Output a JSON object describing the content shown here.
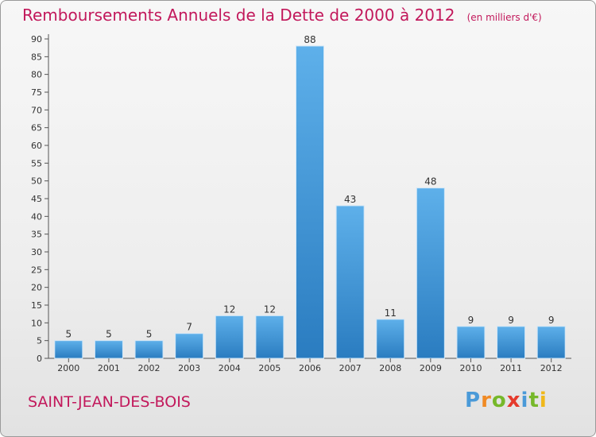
{
  "chart_data": {
    "type": "bar",
    "title": "Remboursements Annuels de la Dette de 2000 à 2012",
    "unit_note": "(en milliers d'€)",
    "categories": [
      "2000",
      "2001",
      "2002",
      "2003",
      "2004",
      "2005",
      "2006",
      "2007",
      "2008",
      "2009",
      "2010",
      "2011",
      "2012"
    ],
    "values": [
      5,
      5,
      5,
      7,
      12,
      12,
      88,
      43,
      11,
      48,
      9,
      9,
      9
    ],
    "data_labels": [
      "5",
      "5",
      "5",
      "7",
      "12",
      "12",
      "88",
      "43",
      "11",
      "48",
      "9",
      "9",
      "9"
    ],
    "ylim": [
      0,
      90
    ],
    "yticks": [
      0,
      5,
      10,
      15,
      20,
      25,
      30,
      35,
      40,
      45,
      50,
      55,
      60,
      65,
      70,
      75,
      80,
      85,
      90
    ],
    "grid": false,
    "bar_color": "#3a8fd6"
  },
  "commune": "SAINT-JEAN-DES-BOIS",
  "brand": {
    "letters": [
      "P",
      "r",
      "o",
      "x",
      "i",
      "t",
      "i"
    ],
    "colors": [
      "#4a9ad8",
      "#f08a24",
      "#76b82a",
      "#e53a2c",
      "#4a9ad8",
      "#76b82a",
      "#f0b81a"
    ]
  }
}
